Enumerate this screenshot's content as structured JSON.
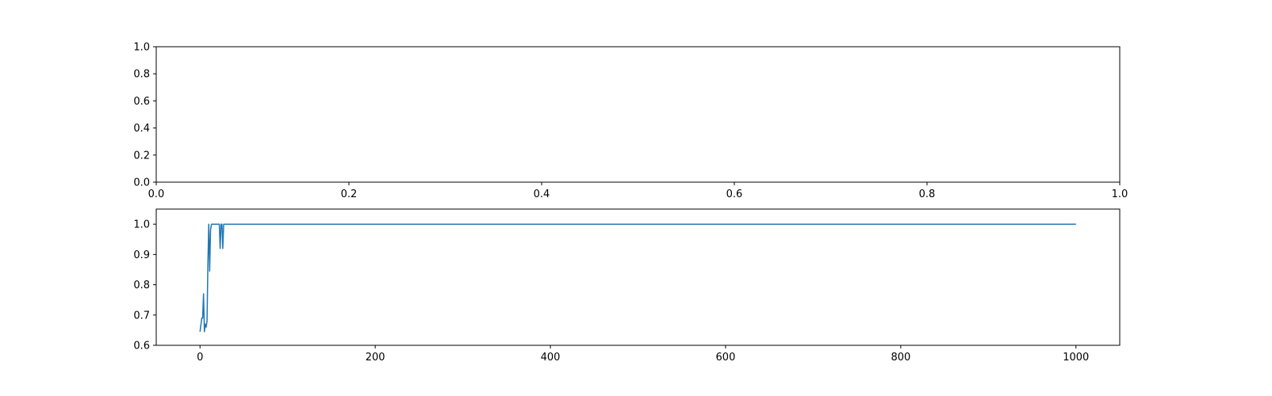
{
  "chart_data": [
    {
      "type": "line",
      "title": "",
      "xlabel": "",
      "ylabel": "",
      "xlim": [
        0,
        1
      ],
      "ylim": [
        0,
        1
      ],
      "xticks": [
        "0.0",
        "0.2",
        "0.4",
        "0.6",
        "0.8",
        "1.0"
      ],
      "yticks": [
        "0.0",
        "0.2",
        "0.4",
        "0.6",
        "0.8",
        "1.0"
      ],
      "grid": false,
      "series": []
    },
    {
      "type": "line",
      "title": "",
      "xlabel": "",
      "ylabel": "",
      "xlim": [
        -50,
        1050
      ],
      "ylim": [
        0.6,
        1.05
      ],
      "xticks": [
        "0",
        "200",
        "400",
        "600",
        "800",
        "1000"
      ],
      "yticks": [
        "0.6",
        "0.7",
        "0.8",
        "0.9",
        "1.0"
      ],
      "grid": false,
      "color": "#1f77b4",
      "series": [
        {
          "x": [
            0,
            2,
            3,
            4,
            5,
            6,
            7,
            8,
            9,
            10,
            11,
            12,
            13,
            14,
            15,
            16,
            18,
            20,
            22,
            23,
            24,
            25,
            26,
            27,
            28,
            30,
            100,
            200,
            400,
            600,
            800,
            1000
          ],
          "y": [
            0.645,
            0.69,
            0.69,
            0.77,
            0.645,
            0.67,
            0.66,
            0.68,
            0.87,
            1.0,
            0.845,
            0.98,
            1.0,
            1.0,
            1.0,
            1.0,
            1.0,
            1.0,
            1.0,
            0.92,
            1.0,
            1.0,
            0.92,
            1.0,
            1.0,
            1.0,
            1.0,
            1.0,
            1.0,
            1.0,
            1.0,
            1.0
          ]
        }
      ]
    }
  ]
}
